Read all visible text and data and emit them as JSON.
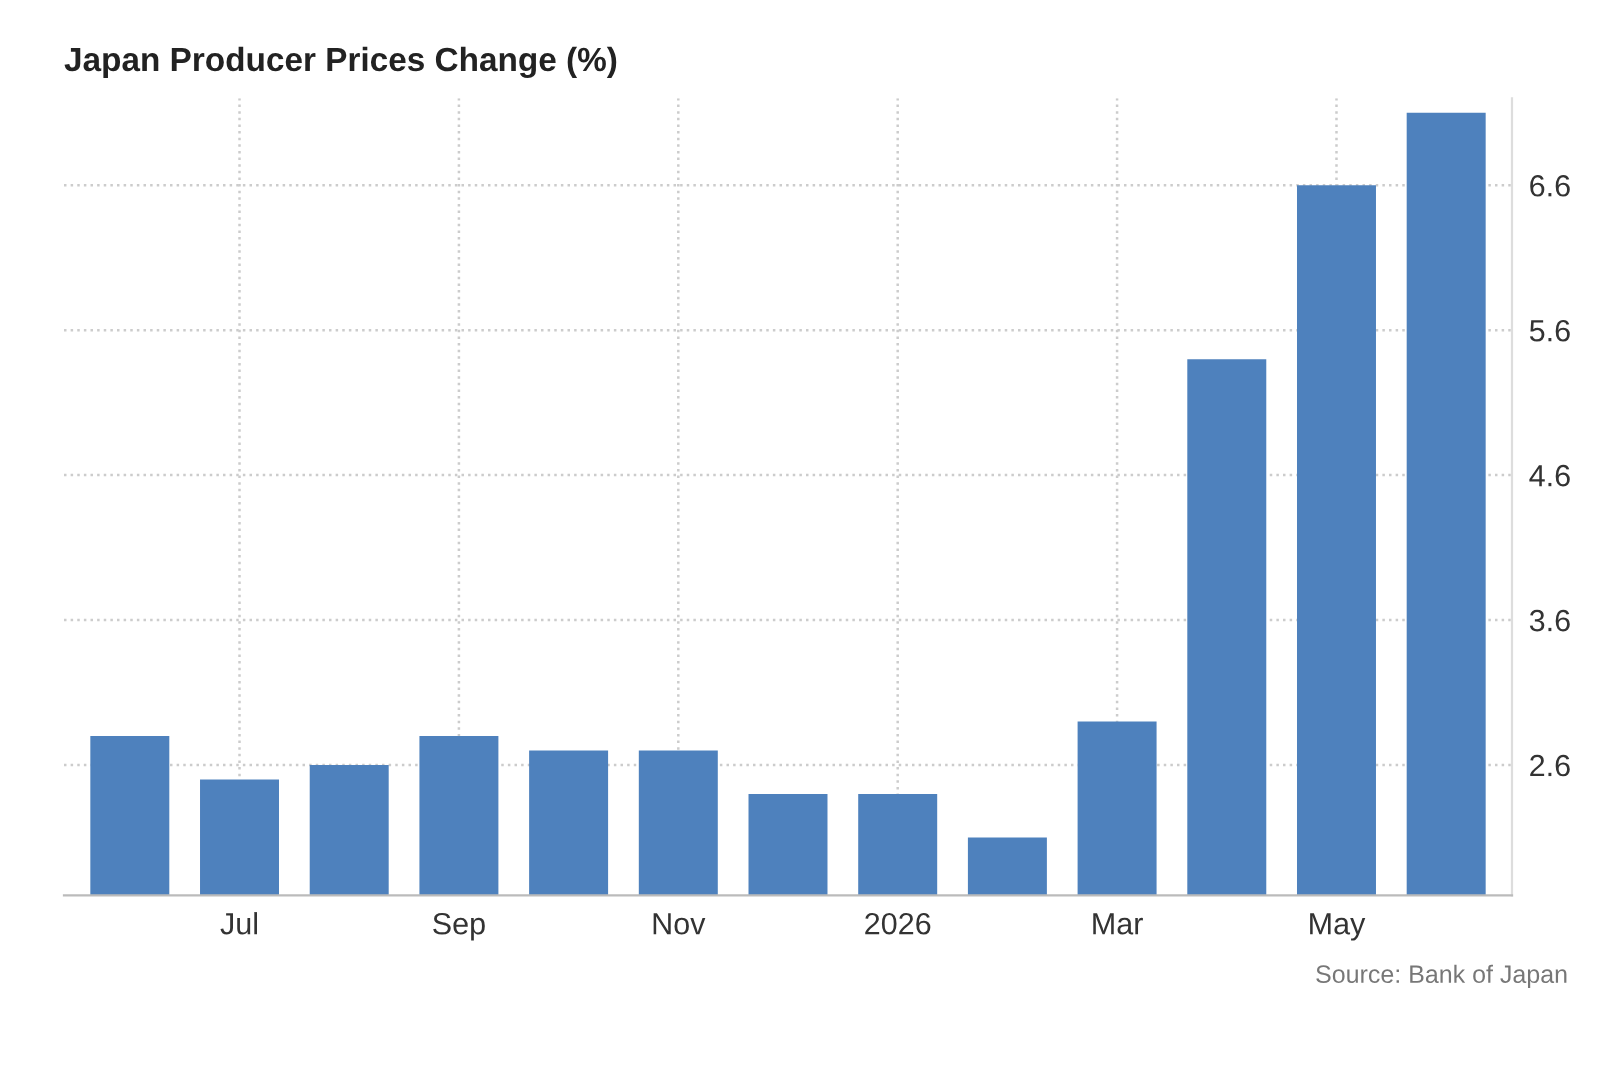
{
  "chart_data": {
    "type": "bar",
    "title": "Japan Producer Prices Change (%)",
    "categories": [
      null,
      "Jul",
      null,
      "Sep",
      null,
      "Nov",
      null,
      "2026",
      null,
      "Mar",
      null,
      "May",
      null
    ],
    "values": [
      2.8,
      2.5,
      2.6,
      2.8,
      2.7,
      2.7,
      2.4,
      2.4,
      2.1,
      2.9,
      5.4,
      6.6,
      7.1
    ],
    "color": "#4e81bd",
    "ylim": [
      1.7,
      7.2
    ],
    "yticks": [
      2.6,
      3.6,
      4.6,
      5.6,
      6.6
    ],
    "grid": true,
    "annotations": [
      "Source: Bank of Japan"
    ]
  }
}
